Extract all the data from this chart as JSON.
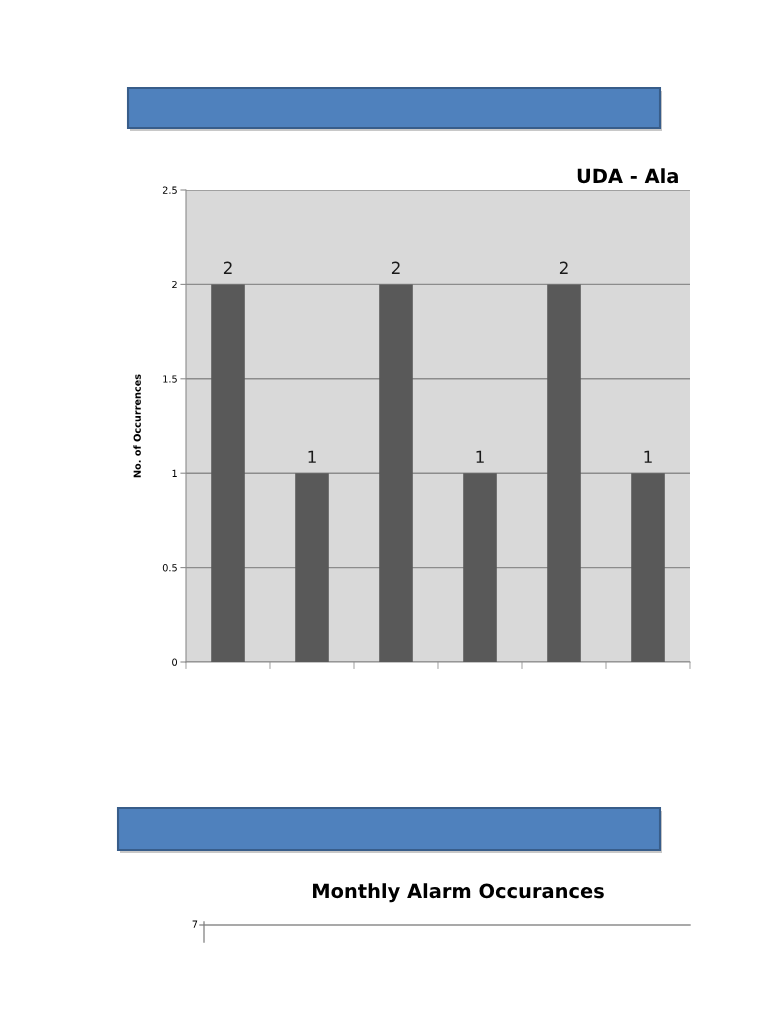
{
  "chart_data": [
    {
      "type": "bar",
      "title": "UDA - Ala",
      "ylabel": "No. of Occurrences",
      "categories": [
        null,
        null,
        null,
        null,
        null,
        null
      ],
      "values": [
        2,
        1,
        2,
        1,
        2,
        1
      ],
      "color": "#595959",
      "ylim": [
        0,
        2.5
      ],
      "yticks": [
        0,
        0.5,
        1,
        1.5,
        2,
        2.5
      ],
      "grid": "y",
      "data_labels": true
    },
    {
      "type": "other",
      "title": "Monthly Alarm Occurances",
      "annotations": [
        "7"
      ]
    }
  ]
}
